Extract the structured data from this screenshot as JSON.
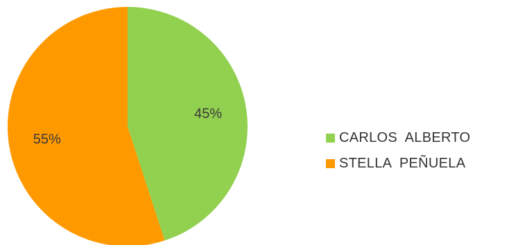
{
  "chart_data": {
    "type": "pie",
    "title": "",
    "start_angle_deg": 0,
    "direction": "clockwise",
    "legend_position": "right",
    "slices": [
      {
        "label": "CARLOS  ALBERTO",
        "value": 45,
        "display": "45%",
        "color": "#92d050"
      },
      {
        "label": "STELLA  PEÑUELA",
        "value": 55,
        "display": "55%",
        "color": "#ff9900"
      }
    ]
  }
}
